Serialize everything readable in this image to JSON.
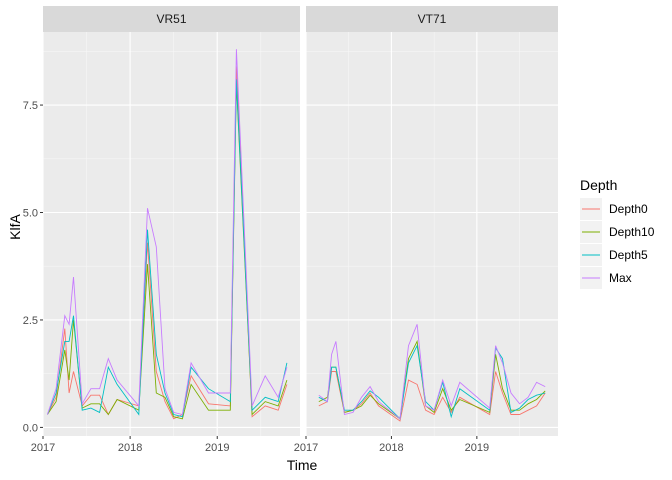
{
  "chart_data": {
    "type": "line",
    "xlabel": "Time",
    "ylabel": "KlfA",
    "xlim": [
      2017.0,
      2019.95
    ],
    "ylim": [
      -0.2,
      9.2
    ],
    "x_ticks": [
      {
        "value": 2017,
        "label": "2017"
      },
      {
        "value": 2018,
        "label": "2018"
      },
      {
        "value": 2019,
        "label": "2019"
      }
    ],
    "y_ticks": [
      {
        "value": 0.0,
        "label": "0.0"
      },
      {
        "value": 2.5,
        "label": "2.5"
      },
      {
        "value": 5.0,
        "label": "5.0"
      },
      {
        "value": 7.5,
        "label": "7.5"
      }
    ],
    "grid": true,
    "legend": {
      "title": "Depth",
      "position": "right"
    },
    "series_styles": [
      {
        "name": "Depth0",
        "color": "#F8766D"
      },
      {
        "name": "Depth10",
        "color": "#7CAE00"
      },
      {
        "name": "Depth5",
        "color": "#00BFC4"
      },
      {
        "name": "Max",
        "color": "#C77CFF"
      }
    ],
    "panels": [
      {
        "title": "VR51",
        "series": [
          {
            "name": "Depth0",
            "x": [
              2017.05,
              2017.15,
              2017.25,
              2017.3,
              2017.35,
              2017.45,
              2017.55,
              2017.65,
              2017.75,
              2017.85,
              2018.1,
              2018.2,
              2018.3,
              2018.4,
              2018.5,
              2018.6,
              2018.7,
              2018.9,
              2019.15,
              2019.22,
              2019.4,
              2019.55,
              2019.7,
              2019.8
            ],
            "y": [
              0.3,
              0.7,
              2.3,
              0.8,
              1.3,
              0.5,
              0.75,
              0.75,
              0.3,
              0.65,
              0.5,
              4.3,
              1.3,
              0.6,
              0.2,
              0.3,
              1.2,
              0.55,
              0.5,
              8.4,
              0.25,
              0.5,
              0.4,
              1.0
            ]
          },
          {
            "name": "Depth10",
            "x": [
              2017.05,
              2017.15,
              2017.25,
              2017.3,
              2017.35,
              2017.45,
              2017.55,
              2017.65,
              2017.75,
              2017.85,
              2018.1,
              2018.2,
              2018.3,
              2018.4,
              2018.5,
              2018.6,
              2018.7,
              2018.9,
              2019.15,
              2019.22,
              2019.4,
              2019.55,
              2019.7,
              2019.8
            ],
            "y": [
              0.3,
              0.6,
              1.8,
              1.1,
              2.5,
              0.45,
              0.55,
              0.55,
              0.3,
              0.65,
              0.4,
              3.8,
              0.8,
              0.7,
              0.25,
              0.2,
              1.0,
              0.4,
              0.4,
              8.0,
              0.3,
              0.6,
              0.5,
              1.1
            ]
          },
          {
            "name": "Depth5",
            "x": [
              2017.05,
              2017.15,
              2017.25,
              2017.3,
              2017.35,
              2017.45,
              2017.55,
              2017.65,
              2017.75,
              2017.85,
              2018.1,
              2018.2,
              2018.3,
              2018.4,
              2018.5,
              2018.6,
              2018.7,
              2018.9,
              2019.15,
              2019.22,
              2019.4,
              2019.55,
              2019.7,
              2019.8
            ],
            "y": [
              0.3,
              0.8,
              2.0,
              2.0,
              2.6,
              0.4,
              0.45,
              0.35,
              1.4,
              1.0,
              0.3,
              4.6,
              1.7,
              0.8,
              0.3,
              0.25,
              1.4,
              0.9,
              0.6,
              8.1,
              0.4,
              0.7,
              0.6,
              1.5
            ]
          },
          {
            "name": "Max",
            "x": [
              2017.05,
              2017.15,
              2017.25,
              2017.3,
              2017.35,
              2017.45,
              2017.55,
              2017.65,
              2017.75,
              2017.85,
              2018.1,
              2018.2,
              2018.3,
              2018.4,
              2018.5,
              2018.6,
              2018.7,
              2018.9,
              2019.15,
              2019.22,
              2019.4,
              2019.55,
              2019.7,
              2019.8
            ],
            "y": [
              0.3,
              0.9,
              2.6,
              2.4,
              3.5,
              0.55,
              0.9,
              0.9,
              1.6,
              1.1,
              0.5,
              5.1,
              4.2,
              0.9,
              0.35,
              0.3,
              1.5,
              0.8,
              0.8,
              8.8,
              0.5,
              1.2,
              0.7,
              1.4
            ]
          }
        ]
      },
      {
        "title": "VT71",
        "series": [
          {
            "name": "Depth0",
            "x": [
              2017.15,
              2017.25,
              2017.3,
              2017.35,
              2017.45,
              2017.55,
              2017.65,
              2017.75,
              2017.85,
              2018.1,
              2018.2,
              2018.3,
              2018.4,
              2018.5,
              2018.6,
              2018.7,
              2018.8,
              2019.15,
              2019.22,
              2019.3,
              2019.4,
              2019.5,
              2019.6,
              2019.7,
              2019.8
            ],
            "y": [
              0.5,
              0.6,
              1.3,
              1.3,
              0.35,
              0.4,
              0.55,
              0.8,
              0.5,
              0.15,
              1.1,
              1.0,
              0.4,
              0.3,
              0.7,
              0.35,
              0.7,
              0.3,
              1.3,
              0.8,
              0.3,
              0.3,
              0.4,
              0.5,
              0.8
            ]
          },
          {
            "name": "Depth10",
            "x": [
              2017.15,
              2017.25,
              2017.3,
              2017.35,
              2017.45,
              2017.55,
              2017.65,
              2017.75,
              2017.85,
              2018.1,
              2018.2,
              2018.3,
              2018.4,
              2018.5,
              2018.6,
              2018.7,
              2018.8,
              2019.15,
              2019.22,
              2019.3,
              2019.4,
              2019.5,
              2019.6,
              2019.7,
              2019.8
            ],
            "y": [
              0.6,
              0.7,
              1.4,
              1.4,
              0.35,
              0.4,
              0.5,
              0.75,
              0.55,
              0.2,
              1.6,
              2.0,
              0.5,
              0.35,
              0.9,
              0.4,
              0.65,
              0.35,
              1.7,
              0.9,
              0.4,
              0.4,
              0.55,
              0.65,
              0.85
            ]
          },
          {
            "name": "Depth5",
            "x": [
              2017.15,
              2017.25,
              2017.3,
              2017.35,
              2017.45,
              2017.55,
              2017.65,
              2017.75,
              2017.85,
              2018.1,
              2018.2,
              2018.3,
              2018.4,
              2018.5,
              2018.6,
              2018.7,
              2018.8,
              2019.15,
              2019.22,
              2019.3,
              2019.4,
              2019.5,
              2019.6,
              2019.7,
              2019.8
            ],
            "y": [
              0.7,
              0.6,
              1.4,
              1.4,
              0.4,
              0.4,
              0.6,
              0.85,
              0.7,
              0.2,
              1.5,
              1.9,
              0.6,
              0.4,
              1.05,
              0.25,
              0.9,
              0.4,
              1.85,
              1.6,
              0.35,
              0.45,
              0.65,
              0.75,
              0.8
            ]
          },
          {
            "name": "Max",
            "x": [
              2017.15,
              2017.25,
              2017.3,
              2017.35,
              2017.45,
              2017.55,
              2017.65,
              2017.75,
              2017.85,
              2018.1,
              2018.2,
              2018.3,
              2018.4,
              2018.5,
              2018.6,
              2018.7,
              2018.8,
              2019.15,
              2019.22,
              2019.3,
              2019.4,
              2019.5,
              2019.6,
              2019.7,
              2019.8
            ],
            "y": [
              0.75,
              0.6,
              1.7,
              2.0,
              0.3,
              0.35,
              0.7,
              0.95,
              0.6,
              0.2,
              1.9,
              2.4,
              0.5,
              0.4,
              1.1,
              0.5,
              1.05,
              0.45,
              1.9,
              1.5,
              0.8,
              0.55,
              0.7,
              1.05,
              0.95
            ]
          }
        ]
      }
    ]
  }
}
